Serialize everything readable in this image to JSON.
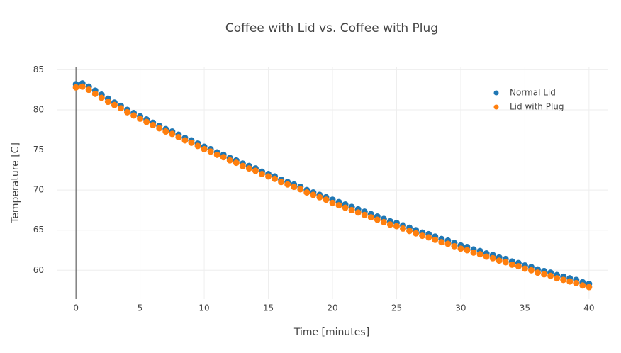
{
  "chart_data": {
    "type": "scatter",
    "title": "Coffee with Lid vs. Coffee with Plug",
    "x_label": "Time [minutes]",
    "y_label": "Temperature [C]",
    "x": [
      0,
      0.5,
      1,
      1.5,
      2,
      2.5,
      3,
      3.5,
      4,
      4.5,
      5,
      5.5,
      6,
      6.5,
      7,
      7.5,
      8,
      8.5,
      9,
      9.5,
      10,
      10.5,
      11,
      11.5,
      12,
      12.5,
      13,
      13.5,
      14,
      14.5,
      15,
      15.5,
      16,
      16.5,
      17,
      17.5,
      18,
      18.5,
      19,
      19.5,
      20,
      20.5,
      21,
      21.5,
      22,
      22.5,
      23,
      23.5,
      24,
      24.5,
      25,
      25.5,
      26,
      26.5,
      27,
      27.5,
      28,
      28.5,
      29,
      29.5,
      30,
      30.5,
      31,
      31.5,
      32,
      32.5,
      33,
      33.5,
      34,
      34.5,
      35,
      35.5,
      36,
      36.5,
      37,
      37.5,
      38,
      38.5,
      39,
      39.5,
      40
    ],
    "series": [
      {
        "name": "Normal Lid",
        "color": "#1f77b4",
        "values": [
          83.2,
          83.3,
          82.9,
          82.4,
          81.9,
          81.4,
          80.9,
          80.5,
          80.0,
          79.6,
          79.2,
          78.8,
          78.4,
          78.0,
          77.6,
          77.3,
          76.9,
          76.5,
          76.2,
          75.8,
          75.4,
          75.1,
          74.7,
          74.4,
          74.0,
          73.7,
          73.3,
          73.0,
          72.7,
          72.3,
          72.0,
          71.7,
          71.3,
          71.0,
          70.7,
          70.4,
          70.0,
          69.7,
          69.4,
          69.1,
          68.8,
          68.5,
          68.2,
          67.9,
          67.6,
          67.3,
          67.0,
          66.7,
          66.4,
          66.1,
          65.9,
          65.6,
          65.3,
          65.0,
          64.7,
          64.5,
          64.2,
          63.9,
          63.7,
          63.4,
          63.1,
          62.9,
          62.6,
          62.4,
          62.1,
          61.9,
          61.6,
          61.4,
          61.1,
          60.9,
          60.6,
          60.4,
          60.1,
          59.9,
          59.7,
          59.4,
          59.2,
          59.0,
          58.8,
          58.5,
          58.3
        ]
      },
      {
        "name": "Lid with Plug",
        "color": "#ff7f0e",
        "values": [
          82.8,
          82.9,
          82.5,
          82.0,
          81.5,
          81.0,
          80.6,
          80.2,
          79.7,
          79.3,
          78.9,
          78.5,
          78.1,
          77.7,
          77.3,
          77.0,
          76.6,
          76.2,
          75.9,
          75.5,
          75.1,
          74.8,
          74.4,
          74.1,
          73.7,
          73.4,
          73.0,
          72.7,
          72.4,
          72.0,
          71.7,
          71.4,
          71.0,
          70.7,
          70.4,
          70.1,
          69.7,
          69.4,
          69.1,
          68.8,
          68.4,
          68.1,
          67.8,
          67.5,
          67.2,
          66.9,
          66.6,
          66.3,
          66.0,
          65.7,
          65.5,
          65.2,
          64.9,
          64.6,
          64.3,
          64.1,
          63.8,
          63.5,
          63.3,
          63.0,
          62.7,
          62.5,
          62.2,
          62.0,
          61.7,
          61.5,
          61.2,
          61.0,
          60.7,
          60.5,
          60.2,
          60.0,
          59.7,
          59.5,
          59.3,
          59.0,
          58.8,
          58.6,
          58.4,
          58.1,
          57.9
        ]
      }
    ],
    "xlim": [
      -1.5,
      41.5
    ],
    "xticks": [
      0,
      5,
      10,
      15,
      20,
      25,
      30,
      35,
      40
    ],
    "ylim": [
      56.4,
      85.3
    ],
    "yticks": [
      60,
      65,
      70,
      75,
      80,
      85
    ],
    "grid": true,
    "legend": "top right"
  }
}
